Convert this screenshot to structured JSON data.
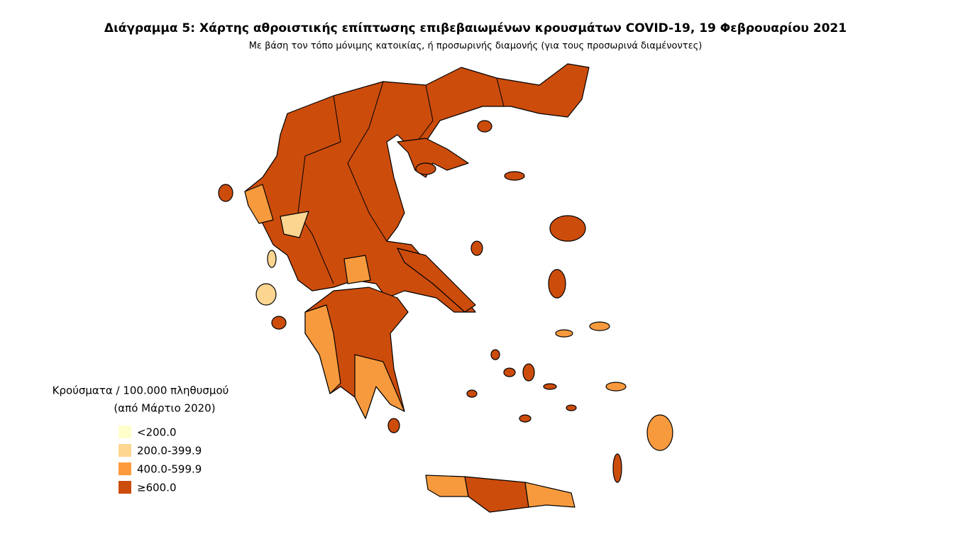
{
  "header": {
    "title": "Διάγραμμα 5: Χάρτης αθροιστικής επίπτωσης επιβεβαιωμένων κρουσμάτων COVID-19, 19 Φεβρουαρίου 2021",
    "subtitle": "Με βάση τον τόπο μόνιμης κατοικίας, ή προσωρινής διαμονής (για τους προσωρινά διαμένοντες)"
  },
  "legend": {
    "title": "Κρούσματα / 100.000 πληθυσμού",
    "subtitle": "(από Μάρτιο 2020)",
    "items": [
      {
        "label": "<200.0",
        "color": "#ffffcc"
      },
      {
        "label": "200.0-399.9",
        "color": "#fed68f"
      },
      {
        "label": "400.0-599.9",
        "color": "#fd9a3c"
      },
      {
        "label": "≥600.0",
        "color": "#cc4c0c"
      }
    ]
  }
}
